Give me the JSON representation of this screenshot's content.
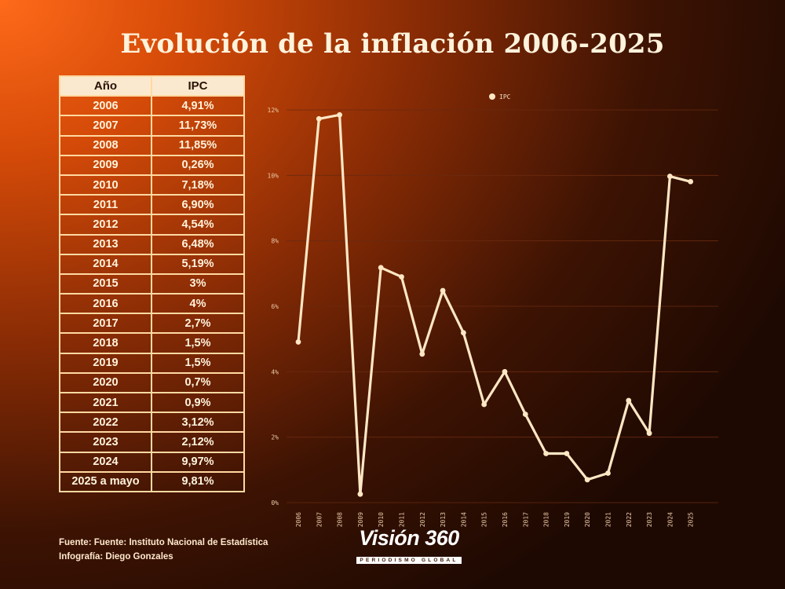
{
  "title": "Evolución de la inflación 2006-2025",
  "table": {
    "headers": [
      "Año",
      "IPC"
    ],
    "rows": [
      [
        "2006",
        "4,91%"
      ],
      [
        "2007",
        "11,73%"
      ],
      [
        "2008",
        "11,85%"
      ],
      [
        "2009",
        "0,26%"
      ],
      [
        "2010",
        "7,18%"
      ],
      [
        "2011",
        "6,90%"
      ],
      [
        "2012",
        "4,54%"
      ],
      [
        "2013",
        "6,48%"
      ],
      [
        "2014",
        "5,19%"
      ],
      [
        "2015",
        "3%"
      ],
      [
        "2016",
        "4%"
      ],
      [
        "2017",
        "2,7%"
      ],
      [
        "2018",
        "1,5%"
      ],
      [
        "2019",
        "1,5%"
      ],
      [
        "2020",
        "0,7%"
      ],
      [
        "2021",
        "0,9%"
      ],
      [
        "2022",
        "3,12%"
      ],
      [
        "2023",
        "2,12%"
      ],
      [
        "2024",
        "9,97%"
      ],
      [
        "2025 a mayo",
        "9,81%"
      ]
    ]
  },
  "chart_data": {
    "type": "line",
    "title": "Evolución de la inflación 2006-2025",
    "x": [
      "2006",
      "2007",
      "2008",
      "2009",
      "2010",
      "2011",
      "2012",
      "2013",
      "2014",
      "2015",
      "2016",
      "2017",
      "2018",
      "2019",
      "2020",
      "2021",
      "2022",
      "2023",
      "2024",
      "2025"
    ],
    "series": [
      {
        "name": "IPC",
        "values": [
          4.91,
          11.73,
          11.85,
          0.26,
          7.18,
          6.9,
          4.54,
          6.48,
          5.19,
          3,
          4,
          2.7,
          1.5,
          1.5,
          0.7,
          0.9,
          3.12,
          2.12,
          9.97,
          9.81
        ]
      }
    ],
    "yticks": [
      "0%",
      "2%",
      "4%",
      "6%",
      "8%",
      "10%",
      "12%"
    ],
    "ylim": [
      0,
      12
    ],
    "grid": true,
    "legend": "top",
    "xlabel": "",
    "ylabel": ""
  },
  "colors": {
    "line": "#ffe7c4",
    "grid": "#6a2a10",
    "table_header_bg": "#fbe9cf",
    "table_border": "#ffd9a1"
  },
  "footer": {
    "source": "Fuente: Fuente: Instituto Nacional de Estadística",
    "credit": "Infografía: Diego Gonzales"
  },
  "logo": {
    "brand": "Visión 360",
    "tagline": "PERIODISMO GLOBAL"
  }
}
